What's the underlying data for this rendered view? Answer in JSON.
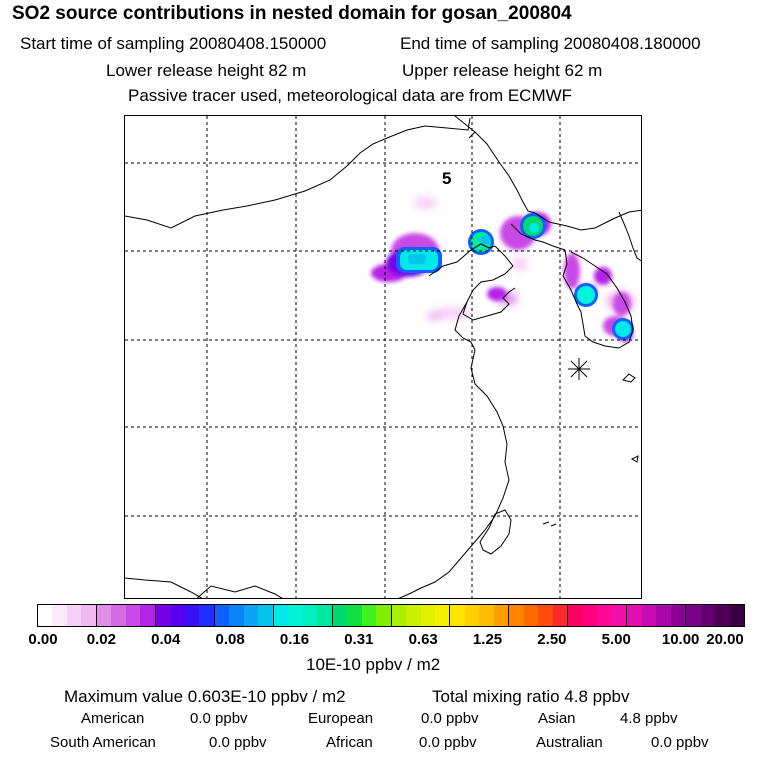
{
  "header": {
    "title": "SO2 source contributions in nested domain for gosan_200804",
    "start_time": "Start time of sampling 20080408.150000",
    "end_time": "End time of sampling 20080408.180000",
    "lower_height": "Lower release height   82 m",
    "upper_height": "Upper release height   62 m",
    "note": "Passive tracer used, meteorological data are from ECMWF"
  },
  "map": {
    "panel_label": "5",
    "receptor_marker": "star-asterisk-icon"
  },
  "colorbar": {
    "ticks": [
      "0.00",
      "0.02",
      "0.04",
      "0.08",
      "0.16",
      "0.31",
      "0.63",
      "1.25",
      "2.50",
      "5.00",
      "10.00",
      "20.00"
    ],
    "segments": [
      [
        "#ffffff",
        "#fbe8fb",
        "#f6d0f6",
        "#f0b8f0"
      ],
      [
        "#e18ee8",
        "#d66be6",
        "#c94ae6",
        "#b424e6"
      ],
      [
        "#7a00e6",
        "#5a00ee",
        "#3a10f6",
        "#2030ff"
      ],
      [
        "#1060ff",
        "#0a84f8",
        "#0ca4f2",
        "#06c2ec"
      ],
      [
        "#00e8e8",
        "#00f4d8",
        "#00f0c0",
        "#00e8a0"
      ],
      [
        "#00d870",
        "#10e040",
        "#40f020",
        "#80f000"
      ],
      [
        "#a8f000",
        "#c8f000",
        "#e0f000",
        "#f4f000"
      ],
      [
        "#ffe400",
        "#ffd000",
        "#ffbc00",
        "#ffa000"
      ],
      [
        "#ff8400",
        "#ff6800",
        "#ff4a10",
        "#ff2a28"
      ],
      [
        "#ff0060",
        "#ff0080",
        "#ff0898",
        "#f010a8"
      ],
      [
        "#e010b0",
        "#c40cb0",
        "#a806a8",
        "#8a0098"
      ],
      [
        "#7a0088",
        "#62006e",
        "#4e0056",
        "#3a0040"
      ]
    ],
    "unit": "10E-10 ppbv / m2"
  },
  "summary": {
    "max_value": "Maximum value  0.603E-10 ppbv / m2",
    "total": "Total mixing ratio        4.8 ppbv",
    "rows": [
      [
        "American",
        "0.0 ppbv",
        "European",
        "0.0 ppbv",
        "Asian",
        "4.8 ppbv"
      ],
      [
        "South American",
        "0.0 ppbv",
        "African",
        "0.0 ppbv",
        "Australian",
        "0.0 ppbv"
      ]
    ]
  }
}
